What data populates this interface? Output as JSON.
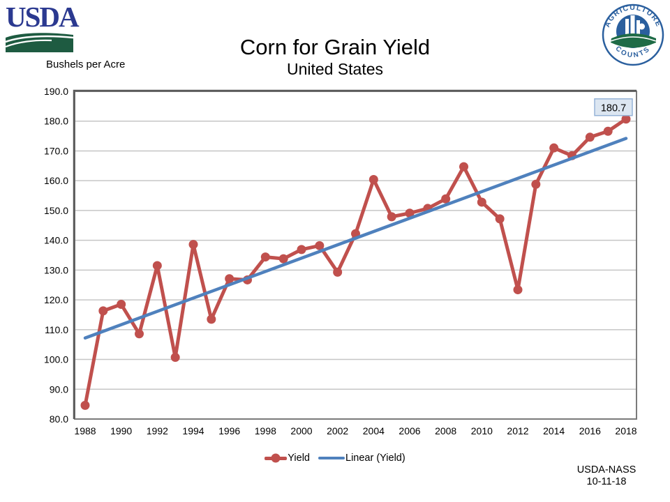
{
  "logos": {
    "usda_text": "USDA",
    "badge_top": "AGRICULTURE",
    "badge_bottom": "COUNTS",
    "usda_blue": "#2B3990",
    "usda_green": "#1E5B41",
    "badge_blue": "#2A5F9E",
    "badge_green": "#1E6B46"
  },
  "footer": {
    "agency": "USDA-NASS",
    "date": "10-11-18"
  },
  "chart_data": {
    "type": "line",
    "title": "Corn for Grain Yield",
    "subtitle": "United States",
    "ylabel": "Bushels per Acre",
    "xlabel": "",
    "x": [
      1988,
      1989,
      1990,
      1991,
      1992,
      1993,
      1994,
      1995,
      1996,
      1997,
      1998,
      1999,
      2000,
      2001,
      2002,
      2003,
      2004,
      2005,
      2006,
      2007,
      2008,
      2009,
      2010,
      2011,
      2012,
      2013,
      2014,
      2015,
      2016,
      2017,
      2018
    ],
    "series": [
      {
        "name": "Yield",
        "color": "#C0504D",
        "marker": "circle",
        "values": [
          84.6,
          116.3,
          118.5,
          108.6,
          131.5,
          100.7,
          138.6,
          113.5,
          127.1,
          126.7,
          134.4,
          133.8,
          136.9,
          138.2,
          129.3,
          142.2,
          160.4,
          147.9,
          149.1,
          150.7,
          153.9,
          164.7,
          152.8,
          147.2,
          123.4,
          158.8,
          171.0,
          168.4,
          174.6,
          176.6,
          180.7
        ]
      },
      {
        "name": "Linear (Yield)",
        "color": "#4F81BD",
        "type": "trendline",
        "endpoints": [
          107.2,
          174.2
        ]
      }
    ],
    "ylim": [
      80,
      190
    ],
    "ytick_step": 10,
    "xtick_step": 2,
    "grid": true,
    "legend_position": "bottom",
    "last_point_label": "180.7",
    "colors": {
      "grid": "#C6C6C6",
      "plot_border": "#7A7A7A",
      "plot_border_dark": "#595959",
      "label_fill": "#DCE6F1",
      "label_border": "#95B3D7",
      "text": "#000000"
    }
  }
}
